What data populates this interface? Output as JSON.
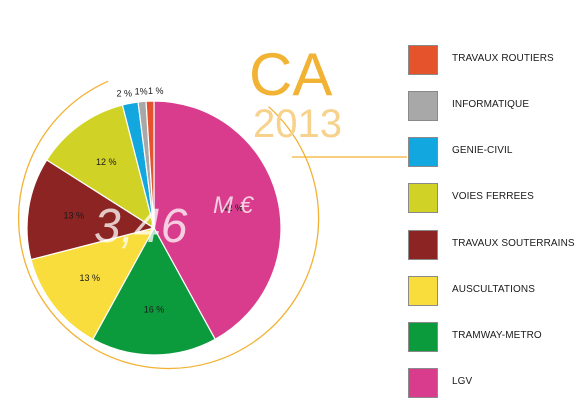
{
  "header": {
    "title": "CA",
    "year": "2013"
  },
  "total": {
    "value": "3,46",
    "unit": "M €"
  },
  "chart_data": {
    "type": "pie",
    "unit": "%",
    "slices": [
      {
        "label": "LGV",
        "value": 42,
        "display": "42 %",
        "color": "#d93c8c"
      },
      {
        "label": "TRAMWAY-METRO",
        "value": 16,
        "display": "16 %",
        "color": "#0b9b3d"
      },
      {
        "label": "AUSCULTATIONS",
        "value": 13,
        "display": "13 %",
        "color": "#f9dd3d"
      },
      {
        "label": "TRAVAUX SOUTERRAINS",
        "value": 13,
        "display": "13 %",
        "color": "#8b2423"
      },
      {
        "label": "VOIES FERREES",
        "value": 12,
        "display": "12 %",
        "color": "#d0d226"
      },
      {
        "label": "GENIE-CIVIL",
        "value": 2,
        "display": "2 %",
        "color": "#13a7e0"
      },
      {
        "label": "INFORMATIQUE",
        "value": 1,
        "display": "1%",
        "color": "#a8a8a8"
      },
      {
        "label": "TRAVAUX ROUTIERS",
        "value": 1,
        "display": "1 %",
        "color": "#e5532c"
      }
    ]
  },
  "legend": [
    {
      "label": "TRAVAUX ROUTIERS",
      "color": "#e5532c"
    },
    {
      "label": "INFORMATIQUE",
      "color": "#a8a8a8"
    },
    {
      "label": "GENIE-CIVIL",
      "color": "#13a7e0"
    },
    {
      "label": "VOIES FERREES",
      "color": "#d0d226"
    },
    {
      "label": "TRAVAUX SOUTERRAINS",
      "color": "#8b2423"
    },
    {
      "label": "AUSCULTATIONS",
      "color": "#f9dd3d"
    },
    {
      "label": "TRAMWAY-METRO",
      "color": "#0b9b3d"
    },
    {
      "label": "LGV",
      "color": "#d93c8c"
    }
  ],
  "colors": {
    "accent": "#f2b233",
    "year": "#f6d28c"
  }
}
